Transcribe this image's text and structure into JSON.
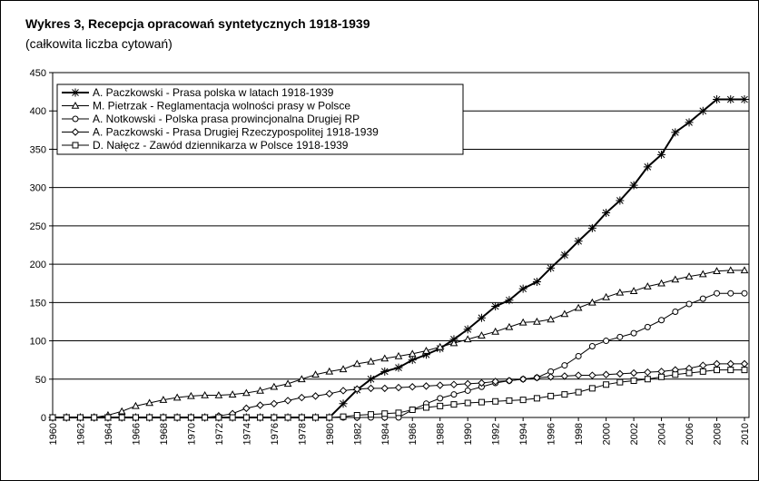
{
  "chart_data": {
    "type": "line",
    "title": "Wykres 3, Recepcja opracowań syntetycznych 1918-1939",
    "subtitle": "(całkowita liczba cytowań)",
    "x": [
      1960,
      1961,
      1962,
      1963,
      1964,
      1965,
      1966,
      1967,
      1968,
      1969,
      1970,
      1971,
      1972,
      1973,
      1974,
      1975,
      1976,
      1977,
      1978,
      1979,
      1980,
      1981,
      1982,
      1983,
      1984,
      1985,
      1986,
      1987,
      1988,
      1989,
      1990,
      1991,
      1992,
      1993,
      1994,
      1995,
      1996,
      1997,
      1998,
      1999,
      2000,
      2001,
      2002,
      2003,
      2004,
      2005,
      2006,
      2007,
      2008,
      2009,
      2010
    ],
    "xlim": [
      1960,
      2010
    ],
    "xticks": [
      1960,
      1962,
      1964,
      1966,
      1968,
      1970,
      1972,
      1974,
      1976,
      1978,
      1980,
      1982,
      1984,
      1986,
      1988,
      1990,
      1992,
      1994,
      1996,
      1998,
      2000,
      2002,
      2004,
      2006,
      2008,
      2010
    ],
    "ylim": [
      0,
      450
    ],
    "yticks": [
      0,
      50,
      100,
      150,
      200,
      250,
      300,
      350,
      400,
      450
    ],
    "grid": true,
    "legend": "upper left",
    "series": [
      {
        "name": "A. Paczkowski - Prasa polska w latach 1918-1939",
        "color": "#000000",
        "marker": "star",
        "values": [
          0,
          0,
          0,
          0,
          0,
          0,
          0,
          0,
          0,
          0,
          0,
          0,
          0,
          0,
          0,
          0,
          0,
          0,
          0,
          0,
          0,
          18,
          36,
          50,
          60,
          65,
          75,
          82,
          90,
          102,
          115,
          130,
          145,
          153,
          168,
          177,
          195,
          212,
          230,
          247,
          267,
          283,
          303,
          327,
          343,
          372,
          385,
          400,
          415,
          415,
          415
        ]
      },
      {
        "name": "M. Pietrzak - Reglamentacja wolności prasy w Polsce",
        "color": "#000000",
        "marker": "triangle",
        "values": [
          0,
          0,
          0,
          0,
          3,
          8,
          15,
          19,
          23,
          26,
          28,
          29,
          29,
          30,
          32,
          35,
          40,
          44,
          50,
          56,
          60,
          63,
          70,
          73,
          77,
          80,
          83,
          87,
          92,
          97,
          102,
          107,
          112,
          118,
          124,
          125,
          128,
          135,
          143,
          150,
          157,
          163,
          165,
          171,
          175,
          180,
          184,
          187,
          191,
          192,
          192
        ]
      },
      {
        "name": "A. Notkowski - Polska prasa prowincjonalna Drugiej RP",
        "color": "#000000",
        "marker": "circle",
        "values": [
          0,
          0,
          0,
          0,
          0,
          0,
          0,
          0,
          0,
          0,
          0,
          0,
          0,
          0,
          0,
          0,
          0,
          0,
          0,
          0,
          0,
          0,
          0,
          0,
          0,
          0,
          10,
          18,
          25,
          30,
          35,
          40,
          45,
          48,
          50,
          52,
          60,
          68,
          80,
          93,
          100,
          105,
          110,
          118,
          127,
          138,
          148,
          155,
          162,
          162,
          162
        ]
      },
      {
        "name": "A. Paczkowski - Prasa Drugiej Rzeczypospolitej 1918-1939",
        "color": "#000000",
        "marker": "diamond",
        "values": [
          0,
          0,
          0,
          0,
          0,
          0,
          0,
          0,
          0,
          0,
          0,
          0,
          2,
          5,
          12,
          16,
          18,
          22,
          26,
          28,
          31,
          35,
          37,
          38,
          38,
          39,
          40,
          41,
          42,
          43,
          44,
          45,
          47,
          48,
          50,
          52,
          53,
          54,
          55,
          55,
          56,
          57,
          58,
          59,
          60,
          62,
          64,
          68,
          70,
          70,
          70
        ]
      },
      {
        "name": "D. Nałęcz - Zawód dziennikarza w Polsce 1918-1939",
        "color": "#000000",
        "marker": "square",
        "values": [
          0,
          0,
          0,
          0,
          0,
          0,
          0,
          0,
          0,
          0,
          0,
          0,
          0,
          0,
          0,
          0,
          0,
          0,
          0,
          0,
          0,
          1,
          3,
          4,
          5,
          6,
          10,
          13,
          15,
          17,
          19,
          20,
          21,
          22,
          23,
          25,
          28,
          30,
          33,
          38,
          43,
          46,
          48,
          50,
          53,
          56,
          58,
          60,
          62,
          62,
          62
        ]
      }
    ]
  }
}
